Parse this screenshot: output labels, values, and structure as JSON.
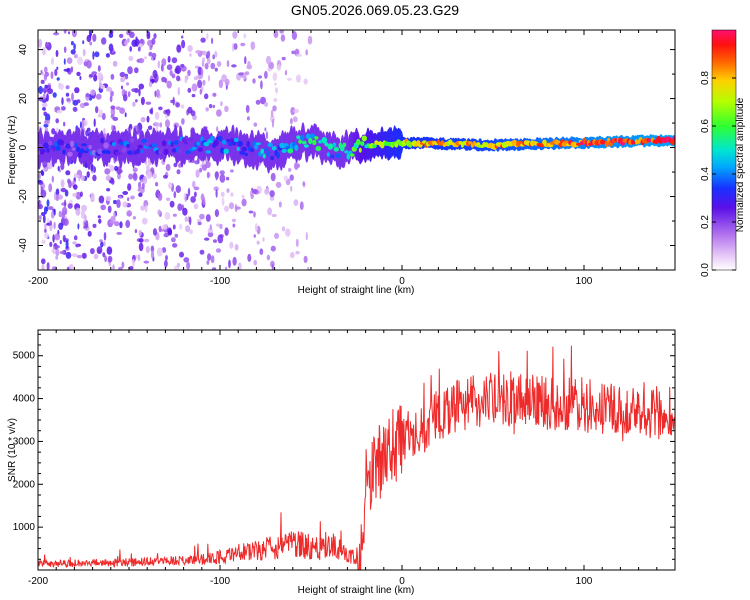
{
  "title": "GN05.2026.069.05.23.G29",
  "chart_data": [
    {
      "type": "heatmap",
      "xlabel": "Height of straight line (km)",
      "ylabel": "Frequency (Hz)",
      "xlim": [
        -200,
        150
      ],
      "ylim": [
        -50,
        48
      ],
      "xticks": [
        -200,
        -100,
        0,
        100
      ],
      "yticks": [
        -40,
        -20,
        0,
        20,
        40
      ],
      "colorbar": {
        "label": "Normalized spectral amplitude",
        "range": [
          0,
          1
        ],
        "ticks": [
          "0.0",
          "0.2",
          "0.4",
          "0.6",
          "0.8"
        ],
        "tick_values": [
          0,
          0.2,
          0.4,
          0.6,
          0.8
        ]
      },
      "ridge": {
        "description_points_x": [
          -200,
          -150,
          -100,
          -70,
          -50,
          -35,
          -20,
          0,
          50,
          100,
          150
        ],
        "frequency_y": [
          0,
          0,
          1,
          -2,
          3,
          -2,
          1,
          2,
          1,
          2,
          3
        ],
        "amplitude": [
          0.25,
          0.3,
          0.35,
          0.4,
          0.5,
          0.45,
          0.6,
          0.75,
          0.8,
          0.9,
          0.95
        ]
      }
    },
    {
      "type": "line",
      "xlabel": "Height of straight line (km)",
      "ylabel": "SNR (10 * v/v)",
      "xlim": [
        -200,
        150
      ],
      "ylim": [
        0,
        5600
      ],
      "xticks": [
        -200,
        -100,
        0,
        100
      ],
      "yticks": [
        1000,
        2000,
        3000,
        4000,
        5000
      ],
      "color": "#ee2a2a",
      "series": [
        {
          "name": "SNR",
          "x": [
            -200,
            -180,
            -160,
            -140,
            -120,
            -110,
            -100,
            -90,
            -80,
            -70,
            -60,
            -50,
            -45,
            -40,
            -35,
            -30,
            -25,
            -22,
            -20,
            -15,
            -10,
            -5,
            0,
            10,
            20,
            30,
            40,
            50,
            60,
            70,
            80,
            90,
            100,
            110,
            120,
            130,
            140,
            150
          ],
          "y": [
            150,
            160,
            170,
            190,
            220,
            250,
            300,
            380,
            450,
            520,
            600,
            550,
            500,
            620,
            550,
            350,
            300,
            300,
            2000,
            2300,
            2700,
            2900,
            3000,
            3300,
            3600,
            3800,
            3900,
            4000,
            4000,
            3950,
            3900,
            3900,
            3850,
            3800,
            3800,
            3750,
            3700,
            3700
          ]
        }
      ]
    }
  ]
}
